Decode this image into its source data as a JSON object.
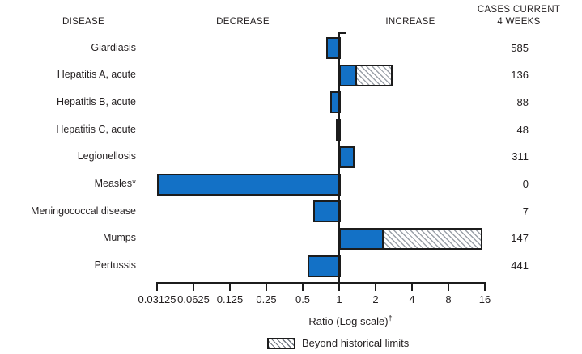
{
  "header": {
    "disease": "DISEASE",
    "decrease": "DECREASE",
    "increase": "INCREASE",
    "cases_line1": "CASES CURRENT",
    "cases_line2": "4 WEEKS"
  },
  "chart_data": {
    "type": "bar",
    "orientation": "horizontal",
    "scale": "log2",
    "title": "",
    "axis": {
      "xlabel": "Ratio (Log scale)",
      "xlabel_superscript": "†",
      "ticks": [
        0.03125,
        0.0625,
        0.125,
        0.25,
        0.5,
        1,
        2,
        4,
        8,
        16
      ],
      "tick_labels": [
        "0.03125",
        "0.0625",
        "0.125",
        "0.25",
        "0.5",
        "1",
        "2",
        "4",
        "8",
        "16"
      ],
      "xlim": [
        0.03125,
        16
      ],
      "baseline": 1
    },
    "rows": [
      {
        "disease": "Giardiasis",
        "ratio": 0.78,
        "beyond": null,
        "cases": "585"
      },
      {
        "disease": "Hepatitis A, acute",
        "ratio": 1.4,
        "beyond": 2.75,
        "cases": "136"
      },
      {
        "disease": "Hepatitis B, acute",
        "ratio": 0.84,
        "beyond": null,
        "cases": "88"
      },
      {
        "disease": "Hepatitis C, acute",
        "ratio": 0.94,
        "beyond": null,
        "cases": "48"
      },
      {
        "disease": "Legionellosis",
        "ratio": 1.33,
        "beyond": null,
        "cases": "311"
      },
      {
        "disease": "Measles*",
        "ratio": 0.03125,
        "beyond": null,
        "cases": "0"
      },
      {
        "disease": "Meningococcal disease",
        "ratio": 0.61,
        "beyond": null,
        "cases": "7"
      },
      {
        "disease": "Mumps",
        "ratio": 2.33,
        "beyond": 15.2,
        "cases": "147"
      },
      {
        "disease": "Pertussis",
        "ratio": 0.55,
        "beyond": null,
        "cases": "441"
      }
    ],
    "legend": {
      "label": "Beyond historical limits"
    },
    "colors": {
      "bar_fill": "#1371c6",
      "bar_border": "#1c1c1c",
      "hatch_line": "#9aa0a8",
      "text": "#231f20"
    }
  }
}
